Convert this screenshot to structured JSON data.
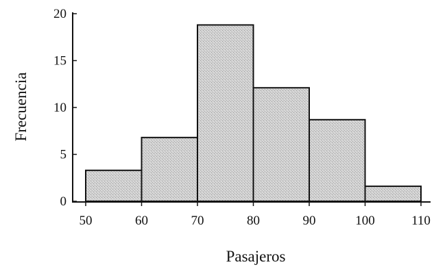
{
  "chart_data": {
    "type": "bar",
    "histogram": true,
    "bins": [
      {
        "from": 50,
        "to": 60,
        "value": 3.3
      },
      {
        "from": 60,
        "to": 70,
        "value": 6.8
      },
      {
        "from": 70,
        "to": 80,
        "value": 18.8
      },
      {
        "from": 80,
        "to": 90,
        "value": 12.1
      },
      {
        "from": 90,
        "to": 100,
        "value": 8.7
      },
      {
        "from": 100,
        "to": 110,
        "value": 1.6
      }
    ],
    "xlabel": "Pasajeros",
    "ylabel": "Frecuencia",
    "x_ticks": [
      "50",
      "60",
      "70",
      "80",
      "90",
      "100",
      "110"
    ],
    "y_ticks": [
      "0",
      "5",
      "10",
      "15",
      "20"
    ],
    "xlim": [
      50,
      110
    ],
    "ylim": [
      0,
      20
    ],
    "grid": false,
    "bar_color": "#d4d4d4",
    "edge_color": "#111111"
  }
}
